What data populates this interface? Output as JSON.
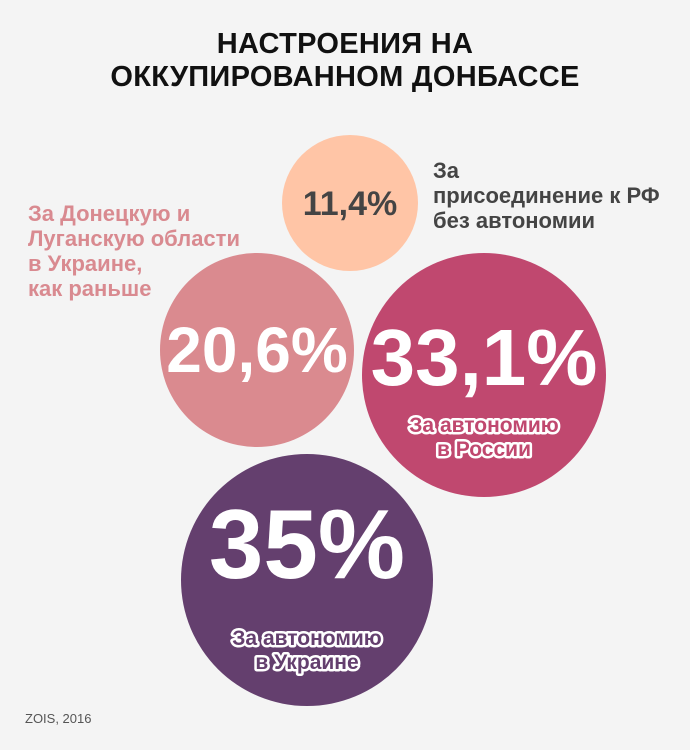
{
  "title": [
    "НАСТРОЕНИЯ НА",
    "ОККУПИРОВАННОМ ДОНБАССЕ"
  ],
  "source": "ZOIS, 2016",
  "chart_data": {
    "type": "bubble",
    "title": "НАСТРОЕНИЯ НА ОККУПИРОВАННОМ ДОНБАССЕ",
    "unit": "%",
    "series": [
      {
        "name": "За присоединение к РФ без автономии",
        "value": 11.4,
        "value_label": "11,4%",
        "label_lines": [
          "За",
          "присоединение к РФ",
          "без автономии"
        ],
        "color": "#ffc5a6",
        "text_color": "#444444",
        "label_position": "outside"
      },
      {
        "name": "За Донецкую и Луганскую области в Украине, как раньше",
        "value": 20.6,
        "value_label": "20,6%",
        "label_lines": [
          "За Донецкую и",
          "Луганскую области",
          "в Украине,",
          "как раньше"
        ],
        "color": "#da8a8f",
        "text_color": "#ffffff",
        "label_position": "outside"
      },
      {
        "name": "За автономию в России",
        "value": 33.1,
        "value_label": "33,1%",
        "label_lines": [
          "За автономию",
          "в России"
        ],
        "color": "#c0486f",
        "text_color": "#ffffff",
        "label_position": "inside"
      },
      {
        "name": "За автономию в Украине",
        "value": 35,
        "value_label": "35%",
        "label_lines": [
          "За автономию",
          "в Украине"
        ],
        "color": "#643f6e",
        "text_color": "#ffffff",
        "label_position": "inside"
      }
    ]
  }
}
